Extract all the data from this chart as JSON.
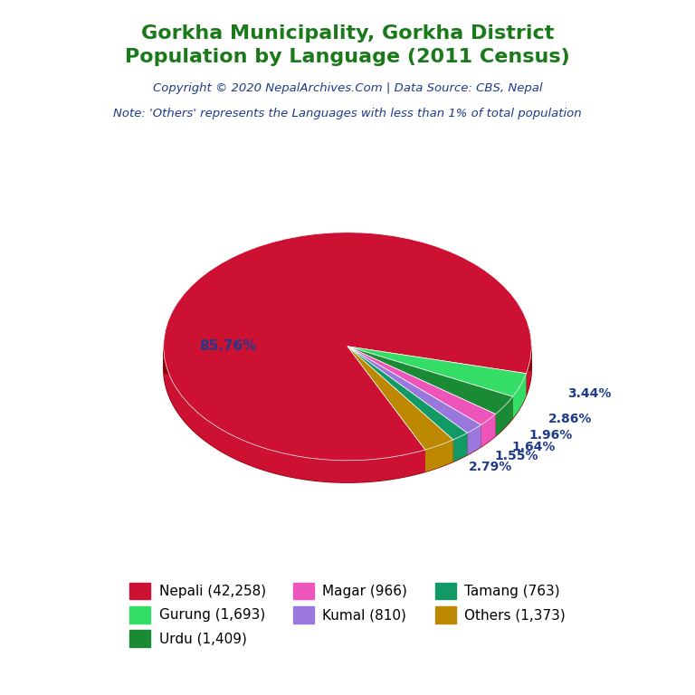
{
  "title_line1": "Gorkha Municipality, Gorkha District",
  "title_line2": "Population by Language (2011 Census)",
  "title_color": "#1a7a1a",
  "copyright_text": "Copyright © 2020 NepalArchives.Com | Data Source: CBS, Nepal",
  "copyright_color": "#1e3a8a",
  "note_text": "Note: 'Others' represents the Languages with less than 1% of total population",
  "note_color": "#1e3a8a",
  "labels": [
    "Nepali (42,258)",
    "Gurung (1,693)",
    "Urdu (1,409)",
    "Magar (966)",
    "Kumal (810)",
    "Tamang (763)",
    "Others (1,373)"
  ],
  "legend_order": [
    "Nepali (42,258)",
    "Gurung (1,693)",
    "Urdu (1,409)",
    "Magar (966)",
    "Kumal (810)",
    "Tamang (763)",
    "Others (1,373)"
  ],
  "values": [
    85.76,
    3.44,
    2.86,
    1.96,
    1.64,
    1.55,
    2.79
  ],
  "colors": [
    "#cc1133",
    "#33dd66",
    "#1a8a35",
    "#ee55bb",
    "#9977dd",
    "#119966",
    "#bb8800"
  ],
  "pct_labels": [
    "85.76%",
    "3.44%",
    "2.86%",
    "1.96%",
    "1.64%",
    "1.55%",
    "2.79%"
  ],
  "pct_color": "#1e3a8a",
  "background_color": "#ffffff",
  "shadow_color": "#8b0000",
  "depth": 0.12,
  "squish": 0.62
}
